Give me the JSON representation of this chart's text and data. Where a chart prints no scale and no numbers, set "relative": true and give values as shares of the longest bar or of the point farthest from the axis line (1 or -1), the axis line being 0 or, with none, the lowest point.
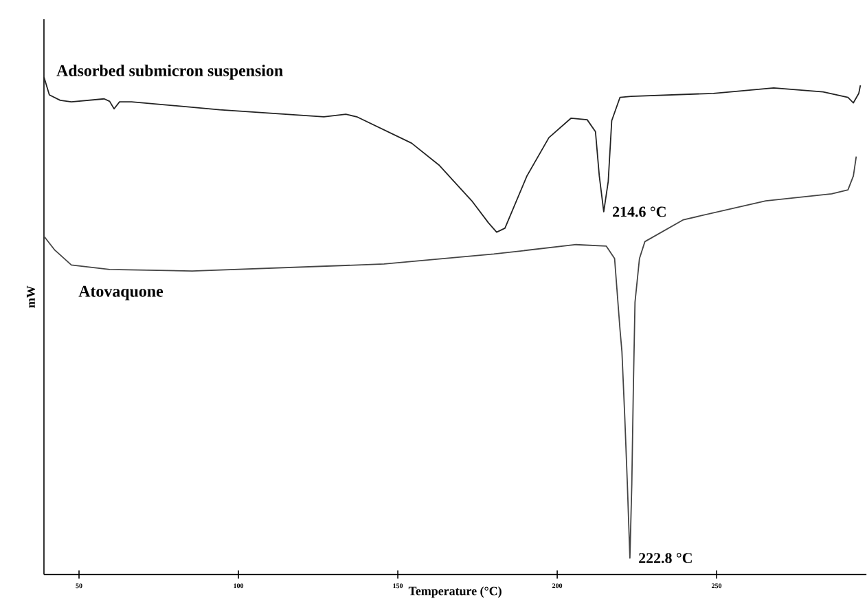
{
  "chart_data": {
    "type": "line",
    "relative": true,
    "xlabel": "Temperature (°C)",
    "ylabel": "mW",
    "xlim": [
      39,
      297
    ],
    "xticks": [
      50,
      100,
      150,
      200,
      250
    ],
    "legend": false,
    "grid": false,
    "marker": "none",
    "line_style": "solid",
    "annotations": [
      {
        "text": "214.6 °C",
        "x": 214.6,
        "y": 0.729
      },
      {
        "text": "222.8 °C",
        "x": 222.8,
        "y": 0.033
      }
    ],
    "series": [
      {
        "name": "Adsorbed submicron suspension",
        "color": "#222222",
        "x": [
          39.0,
          40.7,
          44.1,
          47.6,
          57.9,
          59.6,
          61.0,
          62.7,
          66.5,
          94.1,
          126.8,
          133.7,
          137.1,
          154.3,
          162.9,
          173.2,
          178.4,
          181.0,
          183.6,
          190.5,
          197.4,
          204.3,
          209.4,
          212.0,
          213.2,
          214.6,
          216.0,
          217.1,
          219.7,
          223.2,
          249.0,
          267.9,
          283.4,
          291.2,
          292.9,
          294.6,
          295.1
        ],
        "values": [
          1.0,
          0.964,
          0.953,
          0.95,
          0.956,
          0.951,
          0.936,
          0.95,
          0.95,
          0.934,
          0.92,
          0.925,
          0.92,
          0.867,
          0.823,
          0.751,
          0.707,
          0.688,
          0.696,
          0.801,
          0.878,
          0.917,
          0.914,
          0.89,
          0.801,
          0.729,
          0.79,
          0.912,
          0.959,
          0.961,
          0.967,
          0.978,
          0.97,
          0.959,
          0.948,
          0.967,
          0.983
        ]
      },
      {
        "name": "Atovaquone",
        "color": "#444444",
        "x": [
          39.0,
          42.4,
          47.6,
          59.6,
          85.5,
          145.7,
          180.1,
          205.9,
          215.4,
          218.0,
          219.7,
          220.3,
          221.2,
          222.0,
          222.8,
          223.4,
          223.9,
          224.4,
          225.8,
          227.5,
          239.6,
          265.4,
          286.1,
          291.2,
          292.9,
          293.8
        ],
        "values": [
          0.68,
          0.652,
          0.622,
          0.613,
          0.61,
          0.624,
          0.644,
          0.663,
          0.66,
          0.635,
          0.492,
          0.448,
          0.315,
          0.182,
          0.033,
          0.182,
          0.381,
          0.547,
          0.635,
          0.669,
          0.713,
          0.751,
          0.765,
          0.773,
          0.801,
          0.84
        ]
      }
    ]
  }
}
